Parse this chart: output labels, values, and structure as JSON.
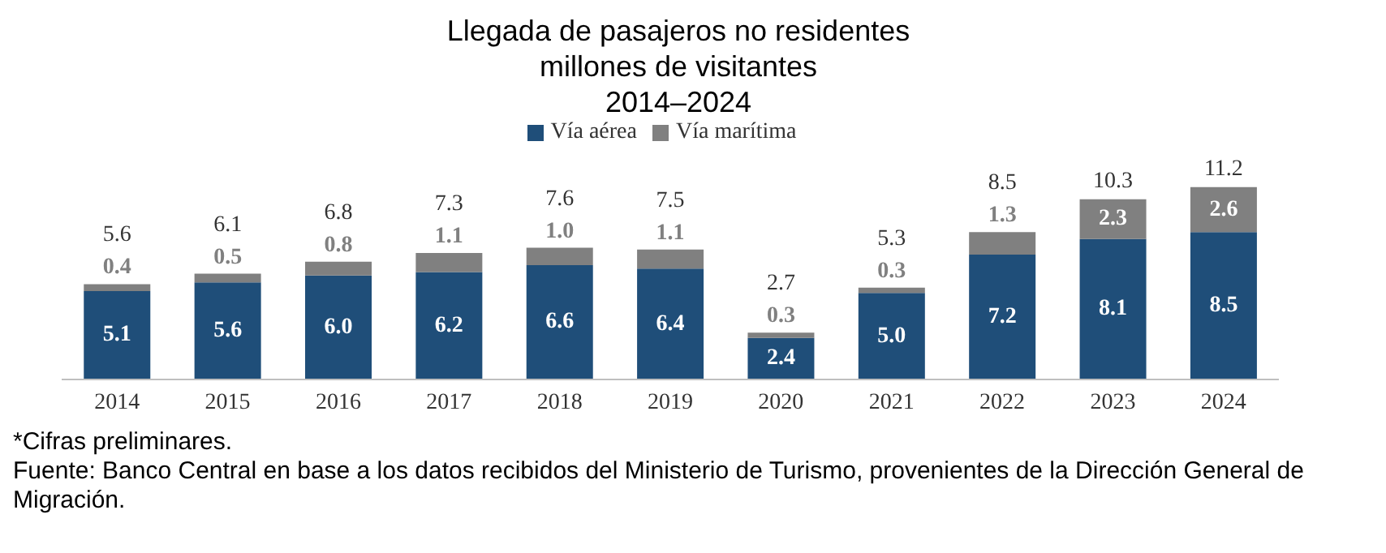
{
  "chart_data": {
    "type": "bar",
    "title": "Llegada de pasajeros no residentes",
    "subtitle": "millones de visitantes\n2014–2024",
    "categories": [
      "2014",
      "2015",
      "2016",
      "2017",
      "2018",
      "2019",
      "2020",
      "2021",
      "2022",
      "2023",
      "2024"
    ],
    "series": [
      {
        "name": "Vía aérea",
        "color": "#1f4e79",
        "values": [
          5.1,
          5.6,
          6.0,
          6.2,
          6.6,
          6.4,
          2.4,
          5.0,
          7.2,
          8.1,
          8.5
        ],
        "value_labels": [
          "5.1",
          "5.6",
          "6.0",
          "6.2",
          "6.6",
          "6.4",
          "2.4",
          "5.0",
          "7.2",
          "8.1",
          "8.5"
        ]
      },
      {
        "name": "Vía marítima",
        "color": "#808080",
        "values": [
          0.4,
          0.5,
          0.8,
          1.1,
          1.0,
          1.1,
          0.3,
          0.3,
          1.3,
          2.3,
          2.6
        ],
        "value_labels": [
          "0.4",
          "0.5",
          "0.8",
          "1.1",
          "1.0",
          "1.1",
          "0.3",
          "0.3",
          "1.3",
          "2.3",
          "2.6"
        ]
      }
    ],
    "stacked": true,
    "totals": [
      "5.6",
      "6.1",
      "6.8",
      "7.3",
      "7.6",
      "7.5",
      "2.7",
      "5.3",
      "8.5",
      "10.3",
      "11.2"
    ],
    "legend": "top",
    "grid": false,
    "annotations": [
      "*Cifras preliminares.",
      "Fuente: Banco Central en base a los datos recibidos del Ministerio de Turismo, provenientes de la Dirección General de Migración."
    ]
  }
}
